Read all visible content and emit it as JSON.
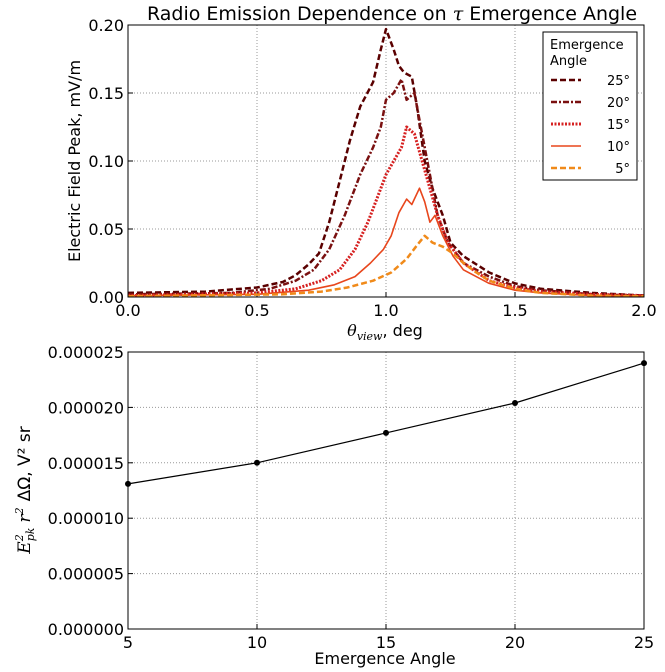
{
  "chart_data": [
    {
      "type": "line",
      "title_prefix": "Radio Emission Dependence on ",
      "title_symbol": "τ",
      "title_suffix": " Emergence Angle",
      "xlabel_symbol": "θ",
      "xlabel_sub": "view",
      "xlabel_suffix": ", deg",
      "ylabel": "Electric Field Peak, mV/m",
      "xlim": [
        0,
        2.0
      ],
      "ylim": [
        0,
        0.2
      ],
      "xticks": [
        "0.0",
        "0.5",
        "1.0",
        "1.5",
        "2.0"
      ],
      "yticks": [
        "0.00",
        "0.05",
        "0.10",
        "0.15",
        "0.20"
      ],
      "grid": true,
      "legend_title": [
        "Emergence",
        "Angle"
      ],
      "legend_position": "top-right",
      "series": [
        {
          "name": "25°",
          "color": "#5a0000",
          "dash": "dashed",
          "points": [
            [
              0,
              0.003
            ],
            [
              0.3,
              0.004
            ],
            [
              0.5,
              0.007
            ],
            [
              0.6,
              0.011
            ],
            [
              0.65,
              0.016
            ],
            [
              0.7,
              0.024
            ],
            [
              0.74,
              0.032
            ],
            [
              0.78,
              0.055
            ],
            [
              0.82,
              0.085
            ],
            [
              0.86,
              0.115
            ],
            [
              0.9,
              0.14
            ],
            [
              0.95,
              0.158
            ],
            [
              0.98,
              0.182
            ],
            [
              1.0,
              0.197
            ],
            [
              1.03,
              0.182
            ],
            [
              1.05,
              0.17
            ],
            [
              1.07,
              0.165
            ],
            [
              1.1,
              0.162
            ],
            [
              1.12,
              0.14
            ],
            [
              1.15,
              0.1
            ],
            [
              1.18,
              0.08
            ],
            [
              1.22,
              0.06
            ],
            [
              1.25,
              0.04
            ],
            [
              1.3,
              0.03
            ],
            [
              1.4,
              0.018
            ],
            [
              1.5,
              0.01
            ],
            [
              1.6,
              0.006
            ],
            [
              1.8,
              0.003
            ],
            [
              2.0,
              0.001
            ]
          ]
        },
        {
          "name": "20°",
          "color": "#7a1010",
          "dash": "dashdot",
          "points": [
            [
              0,
              0.002
            ],
            [
              0.4,
              0.003
            ],
            [
              0.55,
              0.006
            ],
            [
              0.65,
              0.012
            ],
            [
              0.72,
              0.02
            ],
            [
              0.78,
              0.035
            ],
            [
              0.84,
              0.06
            ],
            [
              0.9,
              0.09
            ],
            [
              0.95,
              0.11
            ],
            [
              0.98,
              0.125
            ],
            [
              1.0,
              0.145
            ],
            [
              1.03,
              0.15
            ],
            [
              1.06,
              0.16
            ],
            [
              1.08,
              0.145
            ],
            [
              1.11,
              0.15
            ],
            [
              1.14,
              0.12
            ],
            [
              1.17,
              0.09
            ],
            [
              1.2,
              0.06
            ],
            [
              1.24,
              0.04
            ],
            [
              1.3,
              0.025
            ],
            [
              1.4,
              0.015
            ],
            [
              1.5,
              0.008
            ],
            [
              1.6,
              0.005
            ],
            [
              1.8,
              0.002
            ],
            [
              2.0,
              0.001
            ]
          ]
        },
        {
          "name": "15°",
          "color": "#d62020",
          "dash": "dotted",
          "points": [
            [
              0,
              0.001
            ],
            [
              0.5,
              0.003
            ],
            [
              0.65,
              0.006
            ],
            [
              0.75,
              0.012
            ],
            [
              0.82,
              0.02
            ],
            [
              0.88,
              0.035
            ],
            [
              0.93,
              0.055
            ],
            [
              0.97,
              0.075
            ],
            [
              1.0,
              0.09
            ],
            [
              1.03,
              0.1
            ],
            [
              1.06,
              0.11
            ],
            [
              1.08,
              0.125
            ],
            [
              1.11,
              0.12
            ],
            [
              1.14,
              0.1
            ],
            [
              1.17,
              0.08
            ],
            [
              1.2,
              0.06
            ],
            [
              1.24,
              0.04
            ],
            [
              1.3,
              0.025
            ],
            [
              1.4,
              0.012
            ],
            [
              1.5,
              0.007
            ],
            [
              1.6,
              0.004
            ],
            [
              1.8,
              0.002
            ],
            [
              2.0,
              0.001
            ]
          ]
        },
        {
          "name": "10°",
          "color": "#e8461c",
          "dash": "solid",
          "points": [
            [
              0,
              0.001
            ],
            [
              0.5,
              0.002
            ],
            [
              0.7,
              0.005
            ],
            [
              0.8,
              0.009
            ],
            [
              0.88,
              0.015
            ],
            [
              0.94,
              0.025
            ],
            [
              0.99,
              0.035
            ],
            [
              1.02,
              0.045
            ],
            [
              1.05,
              0.062
            ],
            [
              1.08,
              0.072
            ],
            [
              1.1,
              0.068
            ],
            [
              1.13,
              0.08
            ],
            [
              1.15,
              0.07
            ],
            [
              1.17,
              0.055
            ],
            [
              1.19,
              0.06
            ],
            [
              1.22,
              0.045
            ],
            [
              1.26,
              0.03
            ],
            [
              1.3,
              0.02
            ],
            [
              1.4,
              0.01
            ],
            [
              1.5,
              0.005
            ],
            [
              1.6,
              0.003
            ],
            [
              1.8,
              0.001
            ],
            [
              2.0,
              0.0005
            ]
          ]
        },
        {
          "name": "5°",
          "color": "#f08a1a",
          "dash": "dashed",
          "points": [
            [
              0,
              0.0005
            ],
            [
              0.6,
              0.002
            ],
            [
              0.75,
              0.004
            ],
            [
              0.85,
              0.007
            ],
            [
              0.95,
              0.012
            ],
            [
              1.02,
              0.018
            ],
            [
              1.08,
              0.028
            ],
            [
              1.12,
              0.038
            ],
            [
              1.15,
              0.045
            ],
            [
              1.18,
              0.04
            ],
            [
              1.22,
              0.037
            ],
            [
              1.26,
              0.032
            ],
            [
              1.3,
              0.025
            ],
            [
              1.35,
              0.018
            ],
            [
              1.4,
              0.012
            ],
            [
              1.5,
              0.006
            ],
            [
              1.6,
              0.003
            ],
            [
              1.8,
              0.001
            ],
            [
              2.0,
              0.0005
            ]
          ]
        }
      ]
    },
    {
      "type": "line",
      "xlabel": "Emergence Angle",
      "ylabel_math": "E",
      "ylabel_sub": "pk",
      "ylabel_sup": "2",
      "ylabel_r": "r",
      "ylabel_r_sup": "2",
      "ylabel_rest": "ΔΩ, V² sr",
      "xlim": [
        5,
        25
      ],
      "ylim": [
        0,
        2.5e-05
      ],
      "xticks": [
        "5",
        "10",
        "15",
        "20",
        "25"
      ],
      "yticks": [
        "0.000000",
        "0.000005",
        "0.000010",
        "0.000015",
        "0.000020",
        "0.000025"
      ],
      "grid": true,
      "series": [
        {
          "color": "#000000",
          "x": [
            5,
            10,
            15,
            20,
            25
          ],
          "y": [
            1.31e-05,
            1.5e-05,
            1.77e-05,
            2.04e-05,
            2.4e-05
          ]
        }
      ]
    }
  ]
}
